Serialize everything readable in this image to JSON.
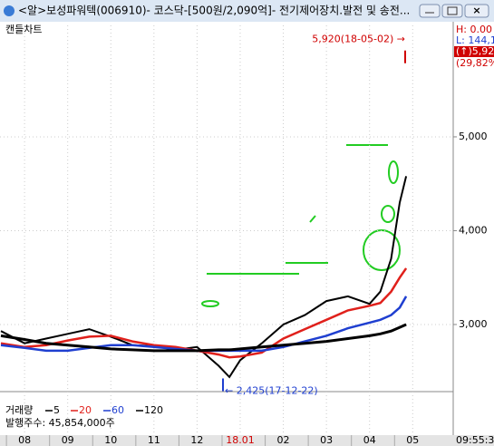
{
  "window": {
    "title": "<알>보성파워텍(006910)- 코스닥-[500원/2,090억]- 전기제어장치.발전 및 송전...",
    "chart_label": "캔들차트",
    "clock": "09:55:3"
  },
  "info_panel": [
    "H: 0.00",
    "L: 144,1",
    "(↑)5,92",
    "(29,82%"
  ],
  "chart_data": {
    "type": "line",
    "x": [
      -0.55,
      0,
      0.5,
      1,
      1.5,
      2,
      2.5,
      3,
      3.5,
      4,
      4.5,
      4.75,
      5,
      5.5,
      6,
      6.5,
      7,
      7.5,
      8,
      8.25,
      8.5,
      8.7,
      8.85
    ],
    "series": [
      {
        "name": "5",
        "color": "#000000",
        "width": 2,
        "values": [
          2930,
          2800,
          2850,
          2900,
          2950,
          2870,
          2780,
          2770,
          2730,
          2760,
          2560,
          2440,
          2620,
          2800,
          3000,
          3100,
          3250,
          3300,
          3220,
          3350,
          3700,
          4300,
          4580
        ]
      },
      {
        "name": "20",
        "color": "#e0201b",
        "width": 2.5,
        "values": [
          2800,
          2760,
          2780,
          2830,
          2870,
          2880,
          2820,
          2780,
          2760,
          2720,
          2680,
          2650,
          2660,
          2700,
          2850,
          2950,
          3050,
          3150,
          3200,
          3230,
          3350,
          3500,
          3600
        ]
      },
      {
        "name": "60",
        "color": "#1f3fd0",
        "width": 2.5,
        "values": [
          2780,
          2750,
          2720,
          2720,
          2750,
          2780,
          2780,
          2760,
          2740,
          2720,
          2720,
          2720,
          2720,
          2720,
          2760,
          2820,
          2880,
          2960,
          3020,
          3050,
          3100,
          3180,
          3300
        ]
      },
      {
        "name": "120",
        "color": "#000000",
        "width": 3,
        "values": [
          2880,
          2840,
          2800,
          2780,
          2760,
          2740,
          2730,
          2720,
          2720,
          2720,
          2730,
          2730,
          2740,
          2760,
          2780,
          2800,
          2820,
          2850,
          2880,
          2900,
          2930,
          2970,
          3000
        ]
      }
    ],
    "ylim": [
      2304,
      6072
    ],
    "yticks": [
      {
        "value": 3000,
        "label": "3,000"
      },
      {
        "value": 4000,
        "label": "4,000"
      },
      {
        "value": 5000,
        "label": "5,000"
      }
    ],
    "xlim": [
      -0.57,
      9.94
    ],
    "xticks": [
      {
        "value": 0,
        "label": "08"
      },
      {
        "value": 1,
        "label": "09"
      },
      {
        "value": 2,
        "label": "10"
      },
      {
        "value": 3,
        "label": "11"
      },
      {
        "value": 4,
        "label": "12"
      },
      {
        "value": 5,
        "label": "18.01"
      },
      {
        "value": 6,
        "label": "02"
      },
      {
        "value": 7,
        "label": "03"
      },
      {
        "value": 8,
        "label": "04"
      },
      {
        "value": 9,
        "label": "05"
      }
    ],
    "grid": true,
    "annotations": [
      {
        "value": 5920,
        "label": "5,920(18-05-02) →",
        "color": "#d00000"
      },
      {
        "value": 2425,
        "label": "← 2,425(17-12-22)",
        "color": "#1f3fd0"
      }
    ],
    "volume_legend": {
      "title": "거래량",
      "shares": "발행주수: 45,854,000주"
    }
  }
}
